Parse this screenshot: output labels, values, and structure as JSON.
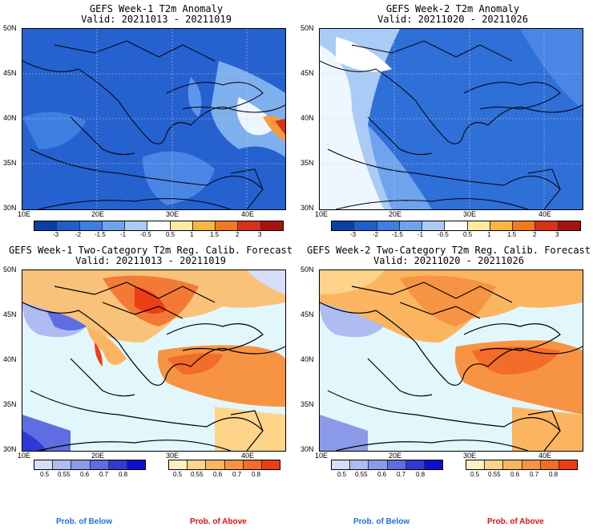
{
  "panels": [
    {
      "title": "GEFS Week-1 T2m Anomaly",
      "valid": "Valid: 20211013 - 20211019"
    },
    {
      "title": "GEFS Week-2 T2m Anomaly",
      "valid": "Valid: 20211020 - 20211026"
    },
    {
      "title": "GEFS Week-1 Two-Category T2m Reg. Calib. Forecast",
      "valid": "Valid: 20211013 - 20211019"
    },
    {
      "title": "GEFS Week-2 Two-Category T2m Reg. Calib. Forecast",
      "valid": "Valid: 20211020 - 20211026"
    }
  ],
  "axes": {
    "lat_labels": [
      "50N",
      "45N",
      "40N",
      "35N",
      "30N"
    ],
    "lon_labels": [
      "10E",
      "20E",
      "30E",
      "40E"
    ]
  },
  "anomaly_colorbar": {
    "labels": [
      "-3",
      "-2",
      "-1.5",
      "-1",
      "-0.5",
      "0.5",
      "1",
      "1.5",
      "2",
      "3"
    ],
    "colors": [
      "#0a3fa8",
      "#1f5fcc",
      "#3d7fe0",
      "#6fa3ee",
      "#a9cbf6",
      "#ffffff",
      "#fde9a0",
      "#f7b542",
      "#f07a1f",
      "#d8301a",
      "#a6120e"
    ]
  },
  "prob_below_colorbar": {
    "labels": [
      "0.5",
      "0.55",
      "0.6",
      "0.7",
      "0.8"
    ],
    "colors": [
      "#d6defa",
      "#aebcf2",
      "#8a9ae8",
      "#5e6de0",
      "#2f3ad6",
      "#0f0fd0"
    ]
  },
  "prob_above_colorbar": {
    "labels": [
      "0.5",
      "0.55",
      "0.6",
      "0.7",
      "0.8"
    ],
    "colors": [
      "#fff0c4",
      "#fdd48a",
      "#fbb561",
      "#f79444",
      "#f26c2a",
      "#ec3e14"
    ]
  },
  "legend": {
    "below": "Prob. of Below",
    "above": "Prob. of Above"
  },
  "colors": {
    "below_text": "#1f6fe0",
    "above_text": "#e01010",
    "ocean_prob": "#e2f7fb"
  }
}
